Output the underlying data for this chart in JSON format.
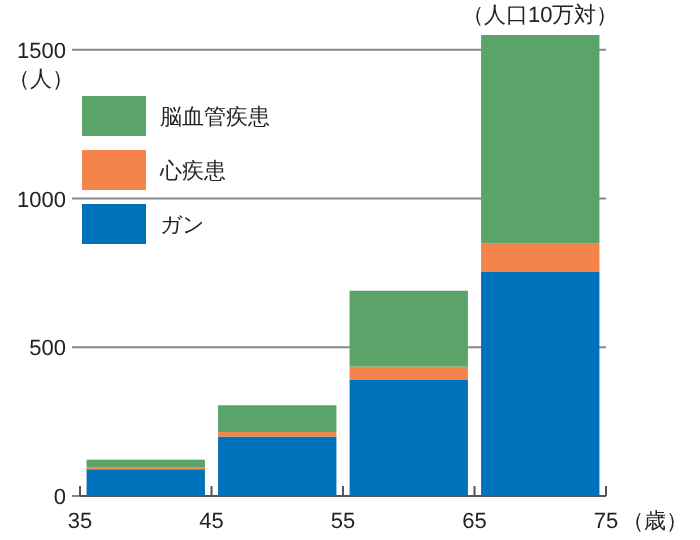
{
  "chart_data": {
    "type": "bar",
    "stacked": true,
    "x": [
      40,
      50,
      60,
      70
    ],
    "series": [
      {
        "name": "ガン",
        "color": "#0072bc",
        "values": [
          90,
          200,
          390,
          755
        ]
      },
      {
        "name": "心疾患",
        "color": "#f5844a",
        "values": [
          7,
          15,
          45,
          95
        ]
      },
      {
        "name": "脳血管疾患",
        "color": "#5aa469",
        "values": [
          25,
          90,
          255,
          700
        ]
      }
    ],
    "xlim": [
      35,
      75
    ],
    "xticks": [
      35,
      45,
      55,
      65,
      75
    ],
    "ylim": [
      0,
      1560
    ],
    "yticks": [
      0,
      500,
      1000,
      1500
    ],
    "xlabel": "（歳）",
    "ylabel": "（人）",
    "annotations": [
      "（人口10万対）"
    ],
    "grid": "y",
    "legend": "top left"
  }
}
